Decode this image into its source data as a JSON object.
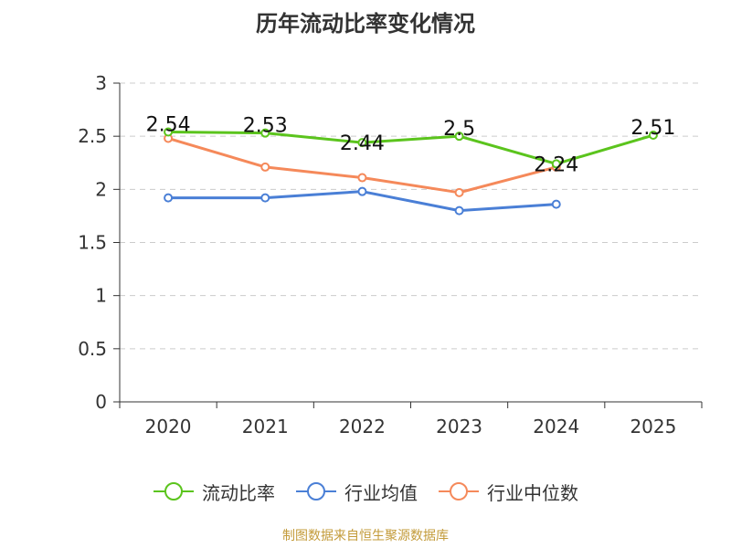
{
  "chart_data": {
    "type": "line",
    "title": "历年流动比率变化情况",
    "categories": [
      "2020",
      "2021",
      "2022",
      "2023",
      "2024",
      "2025"
    ],
    "ylim": [
      0,
      3
    ],
    "yticks": [
      0,
      0.5,
      1,
      1.5,
      2,
      2.5,
      3
    ],
    "ytick_labels": [
      "0",
      "0.5",
      "1",
      "1.5",
      "2",
      "2.5",
      "3"
    ],
    "grid": true,
    "legend_position": "bottom",
    "series": [
      {
        "name": "流动比率",
        "color": "#5bc41d",
        "values": [
          2.54,
          2.53,
          2.44,
          2.5,
          2.24,
          2.51
        ],
        "labels": [
          "2.54",
          "2.53",
          "2.44",
          "2.5",
          "2.24",
          "2.51"
        ]
      },
      {
        "name": "行业均值",
        "color": "#4a7fd6",
        "values": [
          1.92,
          1.92,
          1.98,
          1.8,
          1.86,
          null
        ]
      },
      {
        "name": "行业中位数",
        "color": "#f5895a",
        "values": [
          2.48,
          2.21,
          2.11,
          1.97,
          2.21,
          null
        ]
      }
    ]
  },
  "source": "制图数据来自恒生聚源数据库"
}
